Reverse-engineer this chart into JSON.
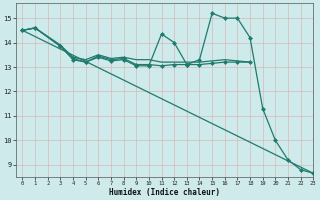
{
  "xlabel": "Humidex (Indice chaleur)",
  "bg_color": "#ceeaea",
  "grid_color": "#b8d8d8",
  "line_color": "#1e7b6e",
  "xlim": [
    -0.5,
    23
  ],
  "ylim": [
    8.5,
    15.6
  ],
  "yticks": [
    9,
    10,
    11,
    12,
    13,
    14,
    15
  ],
  "xticks": [
    0,
    1,
    2,
    3,
    4,
    5,
    6,
    7,
    8,
    9,
    10,
    11,
    12,
    13,
    14,
    15,
    16,
    17,
    18,
    19,
    20,
    21,
    22,
    23
  ],
  "series": [
    {
      "x": [
        0,
        1,
        3,
        4,
        5,
        6,
        7,
        8,
        9,
        10,
        11,
        12,
        13,
        14,
        15,
        16,
        17,
        18
      ],
      "y": [
        14.5,
        14.6,
        13.9,
        13.4,
        13.3,
        13.5,
        13.35,
        13.4,
        13.3,
        13.3,
        13.2,
        13.2,
        13.2,
        13.2,
        13.25,
        13.3,
        13.25,
        13.2
      ],
      "marker": null,
      "lw": 0.9
    },
    {
      "x": [
        0,
        1,
        3,
        4,
        5,
        6,
        7,
        8,
        9,
        10,
        11,
        12,
        13,
        14,
        15,
        16,
        17,
        18
      ],
      "y": [
        14.5,
        14.6,
        13.85,
        13.35,
        13.2,
        13.45,
        13.3,
        13.35,
        13.1,
        13.1,
        13.05,
        13.1,
        13.1,
        13.1,
        13.15,
        13.2,
        13.2,
        13.2
      ],
      "marker": "D",
      "markersize": 2.0,
      "lw": 0.9
    },
    {
      "x": [
        0,
        1,
        3,
        4,
        5,
        6,
        7,
        8,
        9,
        10,
        11,
        12,
        13,
        14,
        15,
        16,
        17,
        18,
        19,
        20,
        21,
        22,
        23
      ],
      "y": [
        14.5,
        14.6,
        13.85,
        13.3,
        13.2,
        13.4,
        13.25,
        13.3,
        13.05,
        13.05,
        14.35,
        14.0,
        13.1,
        13.3,
        15.2,
        15.0,
        15.0,
        14.2,
        11.3,
        10.0,
        9.2,
        8.8,
        8.65
      ],
      "marker": "D",
      "markersize": 2.0,
      "lw": 0.9
    },
    {
      "x": [
        0,
        23
      ],
      "y": [
        14.5,
        8.65
      ],
      "marker": null,
      "lw": 0.9
    }
  ]
}
